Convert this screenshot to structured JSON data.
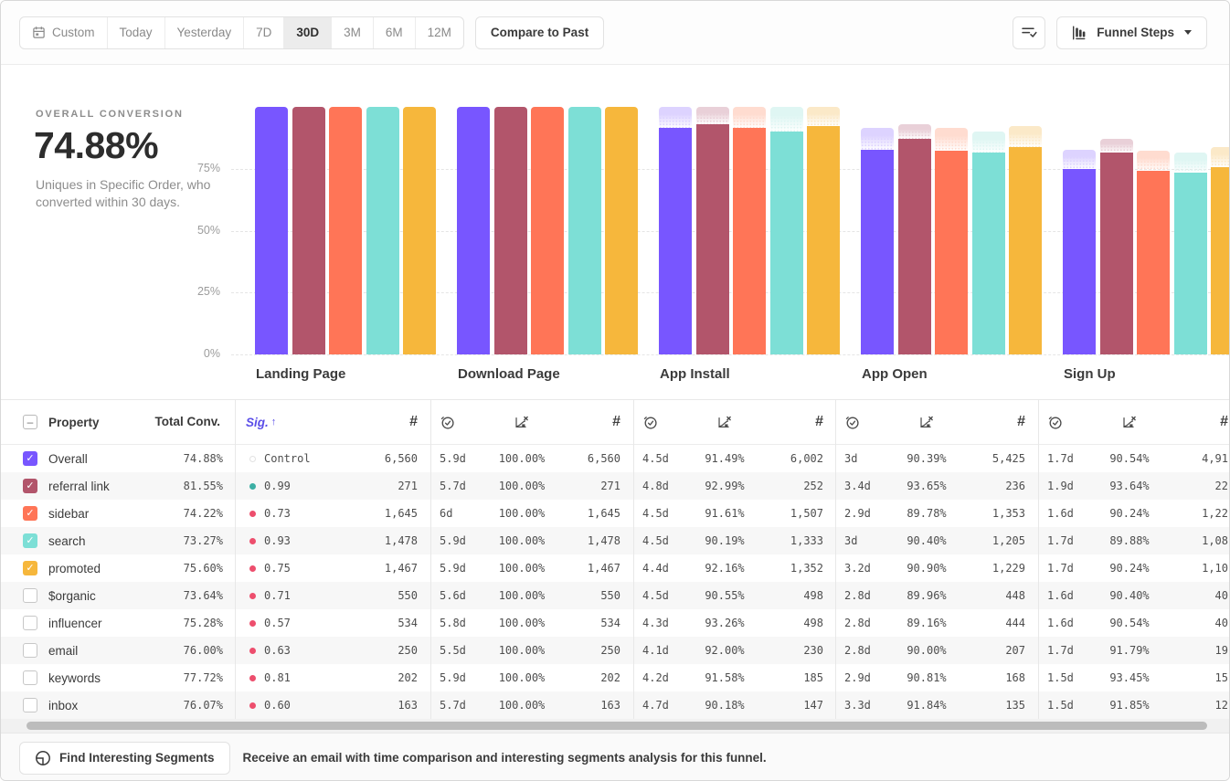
{
  "toolbar": {
    "date_ranges": [
      "Custom",
      "Today",
      "Yesterday",
      "7D",
      "30D",
      "3M",
      "6M",
      "12M"
    ],
    "selected_range": "30D",
    "compare_button": "Compare to Past",
    "view_button": "Funnel Steps",
    "icons": {
      "custom_range": "calendar-icon",
      "edit_columns": "list-check-icon",
      "view_mode": "funnel-bars-icon",
      "view_caret": "chevron-down-icon"
    }
  },
  "summary": {
    "label": "OVERALL CONVERSION",
    "value": "74.88%",
    "description": "Uniques in Specific Order, who converted within 30 days."
  },
  "chart_data": {
    "type": "bar",
    "title": "Funnel conversion by step",
    "categories": [
      "Landing Page",
      "Download Page",
      "App Install",
      "App Open",
      "Sign Up"
    ],
    "y_ticks": [
      "75%",
      "50%",
      "25%",
      "0%"
    ],
    "y_tick_values": [
      75,
      50,
      25,
      0
    ],
    "ylim": [
      0,
      100
    ],
    "grid": "horizontal-dashed",
    "legend_position": "none",
    "value_unit": "% of uniques (cumulative conversion)",
    "series": [
      {
        "name": "Overall",
        "color": "#7856FF",
        "cap_color": "#DDD3FF",
        "values": [
          100,
          100,
          91.49,
          82.7,
          74.88
        ]
      },
      {
        "name": "referral link",
        "color": "#B2556B",
        "cap_color": "#E9D0D8",
        "values": [
          100,
          100,
          92.99,
          87.09,
          81.55
        ]
      },
      {
        "name": "sidebar",
        "color": "#FF7557",
        "cap_color": "#FFDCD0",
        "values": [
          100,
          100,
          91.61,
          82.25,
          74.22
        ]
      },
      {
        "name": "search",
        "color": "#7DDFD6",
        "cap_color": "#DFF6F3",
        "values": [
          100,
          100,
          90.19,
          81.53,
          73.27
        ]
      },
      {
        "name": "promoted",
        "color": "#F6B73C",
        "cap_color": "#FBE9C8",
        "values": [
          100,
          100,
          92.16,
          83.78,
          75.6
        ]
      }
    ]
  },
  "table": {
    "header": {
      "property": "Property",
      "total": "Total Conv.",
      "sig": "Sig.",
      "sort_arrow": "↑",
      "count_symbol": "#"
    },
    "step_groups": [
      "Download Page",
      "App Install",
      "App Open",
      "Sign Up"
    ],
    "sig_colors": {
      "control": "#e2e2e2",
      "positive": "#3CAFA4",
      "negative": "#ED4E6D"
    },
    "glyphs": {
      "check": "✓",
      "indeterminate": "–"
    },
    "rows": [
      {
        "property": "Overall",
        "checked": true,
        "color": "#7856FF",
        "total": "74.88%",
        "sig": "Control",
        "sig_dot": "control",
        "count": "6,560",
        "steps": [
          [
            "5.9d",
            "100.00%",
            "6,560"
          ],
          [
            "4.5d",
            "91.49%",
            "6,002"
          ],
          [
            "3d",
            "90.39%",
            "5,425"
          ],
          [
            "1.7d",
            "90.54%",
            "4,91"
          ]
        ]
      },
      {
        "property": "referral link",
        "checked": true,
        "color": "#B2556B",
        "total": "81.55%",
        "sig": "0.99",
        "sig_dot": "positive",
        "count": "271",
        "steps": [
          [
            "5.7d",
            "100.00%",
            "271"
          ],
          [
            "4.8d",
            "92.99%",
            "252"
          ],
          [
            "3.4d",
            "93.65%",
            "236"
          ],
          [
            "1.9d",
            "93.64%",
            "22"
          ]
        ]
      },
      {
        "property": "sidebar",
        "checked": true,
        "color": "#FF7557",
        "total": "74.22%",
        "sig": "0.73",
        "sig_dot": "negative",
        "count": "1,645",
        "steps": [
          [
            "6d",
            "100.00%",
            "1,645"
          ],
          [
            "4.5d",
            "91.61%",
            "1,507"
          ],
          [
            "2.9d",
            "89.78%",
            "1,353"
          ],
          [
            "1.6d",
            "90.24%",
            "1,22"
          ]
        ]
      },
      {
        "property": "search",
        "checked": true,
        "color": "#7DDFD6",
        "total": "73.27%",
        "sig": "0.93",
        "sig_dot": "negative",
        "count": "1,478",
        "steps": [
          [
            "5.9d",
            "100.00%",
            "1,478"
          ],
          [
            "4.5d",
            "90.19%",
            "1,333"
          ],
          [
            "3d",
            "90.40%",
            "1,205"
          ],
          [
            "1.7d",
            "89.88%",
            "1,08"
          ]
        ]
      },
      {
        "property": "promoted",
        "checked": true,
        "color": "#F6B73C",
        "total": "75.60%",
        "sig": "0.75",
        "sig_dot": "negative",
        "count": "1,467",
        "steps": [
          [
            "5.9d",
            "100.00%",
            "1,467"
          ],
          [
            "4.4d",
            "92.16%",
            "1,352"
          ],
          [
            "3.2d",
            "90.90%",
            "1,229"
          ],
          [
            "1.7d",
            "90.24%",
            "1,10"
          ]
        ]
      },
      {
        "property": "$organic",
        "checked": false,
        "color": "",
        "total": "73.64%",
        "sig": "0.71",
        "sig_dot": "negative",
        "count": "550",
        "steps": [
          [
            "5.6d",
            "100.00%",
            "550"
          ],
          [
            "4.5d",
            "90.55%",
            "498"
          ],
          [
            "2.8d",
            "89.96%",
            "448"
          ],
          [
            "1.6d",
            "90.40%",
            "40"
          ]
        ]
      },
      {
        "property": "influencer",
        "checked": false,
        "color": "",
        "total": "75.28%",
        "sig": "0.57",
        "sig_dot": "negative",
        "count": "534",
        "steps": [
          [
            "5.8d",
            "100.00%",
            "534"
          ],
          [
            "4.3d",
            "93.26%",
            "498"
          ],
          [
            "2.8d",
            "89.16%",
            "444"
          ],
          [
            "1.6d",
            "90.54%",
            "40"
          ]
        ]
      },
      {
        "property": "email",
        "checked": false,
        "color": "",
        "total": "76.00%",
        "sig": "0.63",
        "sig_dot": "negative",
        "count": "250",
        "steps": [
          [
            "5.5d",
            "100.00%",
            "250"
          ],
          [
            "4.1d",
            "92.00%",
            "230"
          ],
          [
            "2.8d",
            "90.00%",
            "207"
          ],
          [
            "1.7d",
            "91.79%",
            "19"
          ]
        ]
      },
      {
        "property": "keywords",
        "checked": false,
        "color": "",
        "total": "77.72%",
        "sig": "0.81",
        "sig_dot": "negative",
        "count": "202",
        "steps": [
          [
            "5.9d",
            "100.00%",
            "202"
          ],
          [
            "4.2d",
            "91.58%",
            "185"
          ],
          [
            "2.9d",
            "90.81%",
            "168"
          ],
          [
            "1.5d",
            "93.45%",
            "15"
          ]
        ]
      },
      {
        "property": "inbox",
        "checked": false,
        "color": "",
        "total": "76.07%",
        "sig": "0.60",
        "sig_dot": "negative",
        "count": "163",
        "steps": [
          [
            "5.7d",
            "100.00%",
            "163"
          ],
          [
            "4.7d",
            "90.18%",
            "147"
          ],
          [
            "3.3d",
            "91.84%",
            "135"
          ],
          [
            "1.5d",
            "91.85%",
            "12"
          ]
        ]
      }
    ]
  },
  "footer": {
    "button": "Find Interesting Segments",
    "button_icon": "segments-icon",
    "message": "Receive an email with time comparison and interesting segments analysis for this funnel."
  }
}
